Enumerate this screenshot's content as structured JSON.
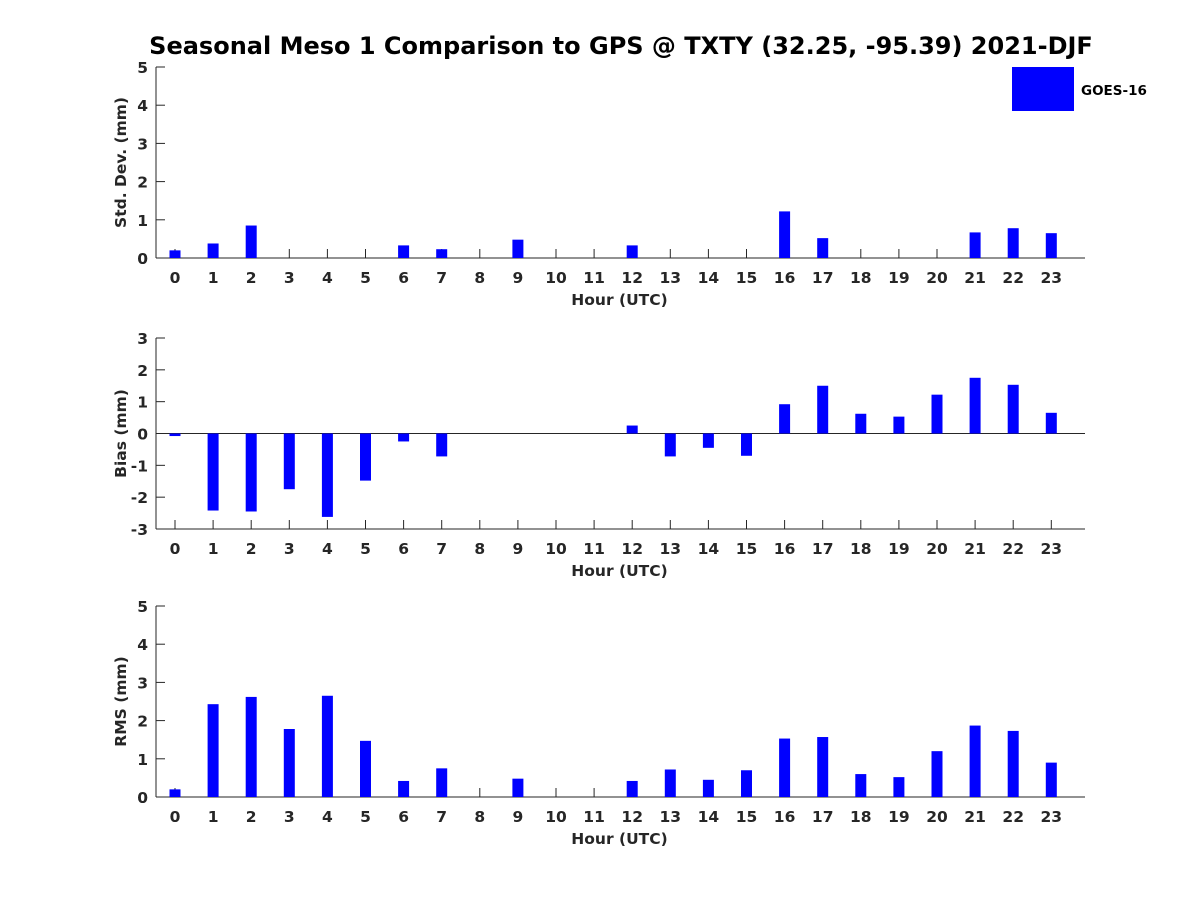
{
  "chart_data": {
    "type": "bar",
    "title": "Seasonal Meso 1 Comparison to GPS @ TXTY (32.25, -95.39) 2021-DJF",
    "legend": {
      "entries": [
        "GOES-16"
      ],
      "position": "top-right"
    },
    "colors": {
      "bar": "#0000ff",
      "axis": "#262626",
      "title": "#000000"
    },
    "categories": [
      "0",
      "1",
      "2",
      "3",
      "4",
      "5",
      "6",
      "7",
      "8",
      "9",
      "10",
      "11",
      "12",
      "13",
      "14",
      "15",
      "16",
      "17",
      "18",
      "19",
      "20",
      "21",
      "22",
      "23"
    ],
    "panels": [
      {
        "ylabel": "Std. Dev. (mm)",
        "xlabel": "Hour (UTC)",
        "ylim": [
          0,
          5
        ],
        "yticks": [
          "0",
          "1",
          "2",
          "3",
          "4",
          "5"
        ],
        "grid": false,
        "series": [
          {
            "name": "GOES-16",
            "values": [
              0.2,
              0.38,
              0.85,
              0,
              0,
              0,
              0.33,
              0.23,
              0,
              0.48,
              0,
              0,
              0.33,
              0,
              0,
              0,
              1.22,
              0.52,
              0,
              0,
              0,
              0.67,
              0.78,
              0.65
            ]
          }
        ]
      },
      {
        "ylabel": "Bias (mm)",
        "xlabel": "Hour (UTC)",
        "ylim": [
          -3,
          3
        ],
        "yticks": [
          "-3",
          "-2",
          "-1",
          "0",
          "1",
          "2",
          "3"
        ],
        "grid": false,
        "series": [
          {
            "name": "GOES-16",
            "values": [
              -0.08,
              -2.42,
              -2.45,
              -1.75,
              -2.62,
              -1.48,
              -0.25,
              -0.72,
              0,
              0,
              0,
              0,
              0.25,
              -0.72,
              -0.45,
              -0.7,
              0.92,
              1.5,
              0.62,
              0.53,
              1.22,
              1.75,
              1.53,
              0.65
            ]
          }
        ]
      },
      {
        "ylabel": "RMS (mm)",
        "xlabel": "Hour (UTC)",
        "ylim": [
          0,
          5
        ],
        "yticks": [
          "0",
          "1",
          "2",
          "3",
          "4",
          "5"
        ],
        "grid": false,
        "series": [
          {
            "name": "GOES-16",
            "values": [
              0.2,
              2.43,
              2.62,
              1.78,
              2.65,
              1.47,
              0.42,
              0.75,
              0,
              0.48,
              0,
              0,
              0.42,
              0.72,
              0.45,
              0.7,
              1.53,
              1.57,
              0.6,
              0.52,
              1.2,
              1.87,
              1.73,
              0.9
            ]
          }
        ]
      }
    ]
  }
}
